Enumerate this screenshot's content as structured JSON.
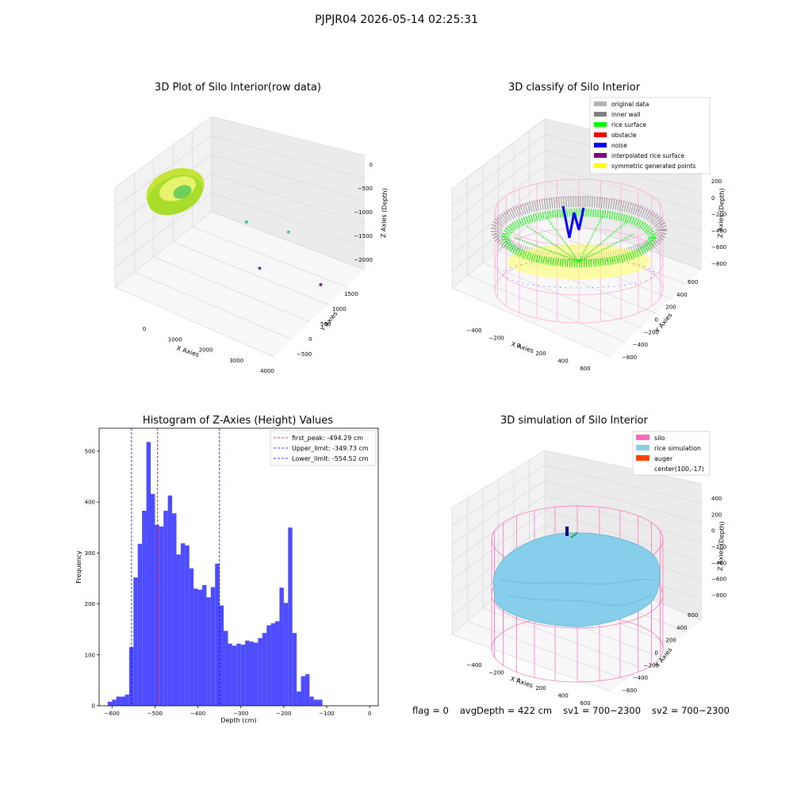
{
  "suptitle": "PJPJR04 2026-05-14 02:25:31",
  "colors": {
    "hist_bar": "#4d4dff",
    "peak_line": "#ff0000",
    "limit_line": "#0000ff",
    "pane": "#f2f2f2",
    "silo": "#ff69b4",
    "rice": "#87ceeb",
    "auger": "#ff4500",
    "rice_surface": "#00ff00",
    "noise": "#0000ff",
    "inner_wall": "#808080",
    "symmetric": "#ffff00",
    "obstacle": "#ff0000",
    "interp": "#800080",
    "original": "#b3b3b3"
  },
  "chart_data": [
    {
      "type": "scatter",
      "title": "3D Plot of Silo Interior(row data)",
      "xlabel": "X Axies",
      "ylabel": "Y Axies",
      "zlabel": "Z Axies (Depth)",
      "x_ticks": [
        "0",
        "1000",
        "2000",
        "3000",
        "4000"
      ],
      "y_ticks": [
        "−500",
        "0",
        "500",
        "1000",
        "1500"
      ],
      "z_ticks": [
        "0",
        "−500",
        "−1000",
        "−1500",
        "−2000"
      ],
      "outliers": [
        {
          "x": 1800,
          "y": 1200,
          "z": -1300
        },
        {
          "x": 3400,
          "y": 1500,
          "z": -1400
        },
        {
          "x": 1300,
          "y": 0,
          "z": -2000
        },
        {
          "x": 3600,
          "y": 400,
          "z": -2200
        }
      ]
    },
    {
      "type": "scatter",
      "title": "3D classify of Silo Interior",
      "xlabel": "X Axies",
      "ylabel": "Y Axies",
      "zlabel": "Z Axies (Depth)",
      "x_ticks": [
        "−400",
        "−200",
        "0",
        "200",
        "400",
        "600"
      ],
      "y_ticks": [
        "−600",
        "−400",
        "−200",
        "0",
        "200",
        "400",
        "600"
      ],
      "z_ticks": [
        "200",
        "0",
        "−200",
        "−400",
        "−600",
        "−800"
      ],
      "z_ticks_partial": [
        "0"
      ],
      "legend": [
        {
          "label": "original data",
          "color": "#b3b3b3"
        },
        {
          "label": "inner wall",
          "color": "#808080"
        },
        {
          "label": "rice surface",
          "color": "#00ff00"
        },
        {
          "label": "obstacle",
          "color": "#ff0000"
        },
        {
          "label": "noise",
          "color": "#0000ff"
        },
        {
          "label": "interpolated rice surface",
          "color": "#800080"
        },
        {
          "label": "symmetric generated points",
          "color": "#ffff00"
        }
      ]
    },
    {
      "type": "bar",
      "title": "Histogram of Z-Axies (Height) Values",
      "xlabel": "Depth (cm)",
      "ylabel": "Frequency",
      "xlim": [
        -630,
        20
      ],
      "ylim": [
        0,
        545
      ],
      "x_ticks": [
        -600,
        -500,
        -400,
        -300,
        -200,
        -100,
        0
      ],
      "x_tick_labels": [
        "−600",
        "−500",
        "−400",
        "−300",
        "−200",
        "−100",
        "0"
      ],
      "y_ticks": [
        0,
        100,
        200,
        300,
        400,
        500
      ],
      "bin_start": -610,
      "bin_width": 10,
      "values": [
        8,
        12,
        18,
        18,
        22,
        115,
        252,
        318,
        383,
        518,
        416,
        355,
        352,
        383,
        413,
        378,
        297,
        319,
        315,
        270,
        230,
        228,
        237,
        213,
        233,
        279,
        197,
        147,
        122,
        118,
        122,
        120,
        128,
        126,
        124,
        133,
        143,
        158,
        162,
        166,
        232,
        202,
        350,
        143,
        28,
        58,
        62,
        18,
        12,
        12
      ],
      "lines": [
        {
          "label": "first_peak: -494.29 cm",
          "value": -494.29,
          "color": "#ff0000"
        },
        {
          "label": "Upper_limit: -349.73 cm",
          "value": -349.73,
          "color": "#0000ff"
        },
        {
          "label": "Lower_limit: -554.52 cm",
          "value": -554.52,
          "color": "#0000ff"
        }
      ],
      "legend_position": "top-right"
    },
    {
      "type": "scatter",
      "title": "3D simulation of Silo Interior",
      "xlabel": "X Axies",
      "ylabel": "Y Axies",
      "zlabel": "Z Axies (Depth)",
      "x_ticks": [
        "−400",
        "−200",
        "0",
        "200",
        "400",
        "600"
      ],
      "y_ticks": [
        "−600",
        "−400",
        "−200",
        "0",
        "200",
        "400",
        "600"
      ],
      "z_ticks": [
        "400",
        "200",
        "0",
        "−200",
        "−400",
        "−600",
        "−800"
      ],
      "legend": [
        {
          "label": "silo",
          "color": "#ff69b4"
        },
        {
          "label": "rice simulation",
          "color": "#87ceeb"
        },
        {
          "label": "auger",
          "color": "#ff4500"
        },
        {
          "label": "center(100,-17)",
          "color": ""
        }
      ]
    }
  ],
  "footer": {
    "flag": "flag = 0",
    "avg_depth": "avgDepth = 422 cm",
    "sv1": "sv1 = 700~2300",
    "sv2": "sv2 = 700~2300"
  }
}
